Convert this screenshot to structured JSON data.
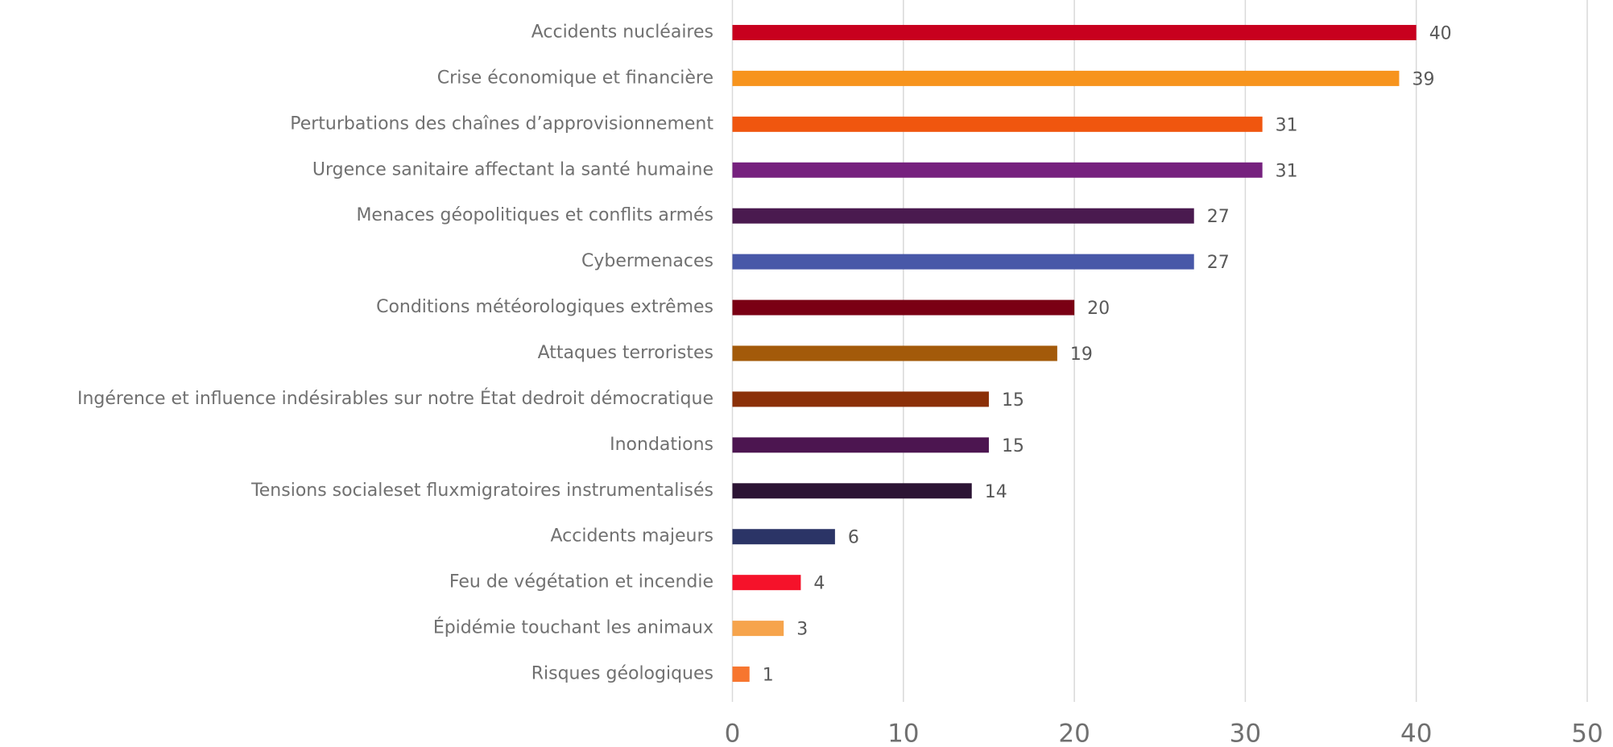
{
  "chart_data": {
    "type": "barh",
    "categories": [
      "Accidents nucléaires",
      "Crise économique et financière",
      "Perturbations des chaînes d’approvisionnement",
      "Urgence sanitaire affectant la santé humaine",
      "Menaces géopolitiques et conflits armés",
      "Cybermenaces",
      "Conditions météorologiques extrêmes",
      "Attaques terroristes",
      "Ingérence et influence indésirables sur notre État dedroit démocratique",
      "Inondations",
      "Tensions socialeset fluxmigratoires instrumentalisés",
      "Accidents majeurs",
      "Feu de végétation et incendie",
      "Épidémie touchant les animaux",
      "Risques géologiques"
    ],
    "values": [
      40,
      39,
      31,
      31,
      27,
      27,
      20,
      19,
      15,
      15,
      14,
      6,
      4,
      3,
      1
    ],
    "colors": [
      "#c8001e",
      "#f7941d",
      "#f0560f",
      "#76217e",
      "#4a1a4f",
      "#4858a8",
      "#7a0014",
      "#a35a0a",
      "#8b3008",
      "#4c1550",
      "#2c1434",
      "#2b3466",
      "#f5122a",
      "#f6a44c",
      "#f7762f"
    ],
    "xlim": [
      0,
      50
    ],
    "xticks": [
      0,
      10,
      20,
      30,
      40,
      50
    ],
    "grid": true
  }
}
